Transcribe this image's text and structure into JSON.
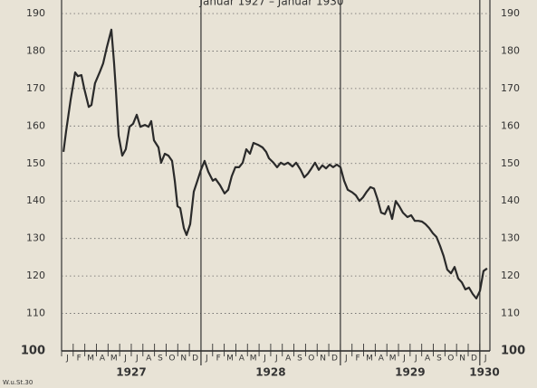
{
  "chart_data": {
    "type": "line",
    "title": "Januar 1927 – Januar 1930",
    "footnote": "W.u.St.30",
    "month_labels": [
      "J",
      "F",
      "M",
      "A",
      "M",
      "J",
      "J",
      "A",
      "S",
      "O",
      "N",
      "D",
      "J",
      "F",
      "M",
      "A",
      "M",
      "J",
      "J",
      "A",
      "S",
      "O",
      "N",
      "D",
      "J",
      "F",
      "M",
      "A",
      "M",
      "J",
      "J",
      "A",
      "S",
      "O",
      "N",
      "D",
      "J"
    ],
    "year_labels": [
      {
        "value": 6,
        "label": "1927"
      },
      {
        "value": 18,
        "label": "1928"
      },
      {
        "value": 30,
        "label": "1929"
      },
      {
        "value": 36.4,
        "label": "1930"
      }
    ],
    "year_lines": [
      12,
      24,
      36
    ],
    "xticks": [
      0,
      1,
      2,
      3,
      4,
      5,
      6,
      7,
      8,
      9,
      10,
      11,
      12,
      13,
      14,
      15,
      16,
      17,
      18,
      19,
      20,
      21,
      22,
      23,
      24,
      25,
      26,
      27,
      28,
      29,
      30,
      31,
      32,
      33,
      34,
      35,
      36
    ],
    "x": [
      0.16,
      0.39,
      0.78,
      1.17,
      1.4,
      1.71,
      1.95,
      2.34,
      2.57,
      2.88,
      3.27,
      3.58,
      3.9,
      4.29,
      4.52,
      4.68,
      4.91,
      5.22,
      5.53,
      5.85,
      6.16,
      6.47,
      6.78,
      7.17,
      7.48,
      7.72,
      7.95,
      8.34,
      8.57,
      8.89,
      9.2,
      9.51,
      9.74,
      9.98,
      10.21,
      10.52,
      10.76,
      11.07,
      11.38,
      11.69,
      12.0,
      12.31,
      12.63,
      13.02,
      13.25,
      13.64,
      14.03,
      14.34,
      14.65,
      14.96,
      15.28,
      15.59,
      15.9,
      16.21,
      16.52,
      16.91,
      17.3,
      17.61,
      17.85,
      18.24,
      18.55,
      18.86,
      19.17,
      19.49,
      19.88,
      20.19,
      20.58,
      20.89,
      21.2,
      21.51,
      21.82,
      22.14,
      22.45,
      22.76,
      23.07,
      23.38,
      23.69,
      24.01,
      24.32,
      24.63,
      25.02,
      25.33,
      25.64,
      25.95,
      26.27,
      26.58,
      26.89,
      27.2,
      27.51,
      27.83,
      28.14,
      28.45,
      28.76,
      29.07,
      29.38,
      29.77,
      30.09,
      30.4,
      30.71,
      31.02,
      31.33,
      31.64,
      31.96,
      32.27,
      32.58,
      32.89,
      33.2,
      33.52,
      33.83,
      34.14,
      34.45,
      34.76,
      35.07,
      35.39,
      35.7,
      36.01,
      36.32,
      36.63
    ],
    "values": [
      153.1,
      158.6,
      167,
      174.3,
      173.3,
      173.6,
      170,
      165.1,
      165.6,
      171.4,
      174.3,
      176.7,
      181,
      185.7,
      176.7,
      169.5,
      157.4,
      152.1,
      153.8,
      159.8,
      160.6,
      163,
      159.8,
      160.3,
      159.8,
      161.3,
      156.2,
      154.3,
      150.2,
      152.6,
      152.1,
      150.7,
      145.4,
      138.6,
      138.1,
      132.8,
      130.9,
      133.8,
      142.5,
      145.4,
      148.3,
      150.7,
      147.8,
      145.4,
      145.9,
      144.2,
      142,
      143,
      146.6,
      149,
      149,
      150.2,
      153.8,
      152.6,
      155.5,
      155,
      154.3,
      153.1,
      151.4,
      150.2,
      149,
      150.2,
      149.7,
      150.2,
      149.2,
      150.2,
      148.3,
      146.3,
      147.3,
      148.7,
      150.2,
      148.3,
      149.5,
      148.7,
      149.7,
      149,
      149.7,
      149,
      145.4,
      143,
      142.3,
      141.5,
      140,
      141,
      142.5,
      143.7,
      143.3,
      140.5,
      136.9,
      136.5,
      138.6,
      135.2,
      140,
      138.6,
      136.9,
      135.7,
      136.2,
      134.7,
      134.7,
      134.5,
      133.8,
      132.8,
      131.4,
      130.4,
      128,
      125.3,
      121.7,
      120.7,
      122.4,
      119.3,
      118.3,
      116.4,
      116.9,
      115.2,
      114,
      116,
      121.3,
      122
    ],
    "color": "#2a2a2a",
    "xlim": [
      0,
      36.87
    ],
    "ylim": [
      100,
      190
    ],
    "yticks": [
      100,
      110,
      120,
      130,
      140,
      150,
      160,
      170,
      180,
      190
    ],
    "grid": true
  }
}
